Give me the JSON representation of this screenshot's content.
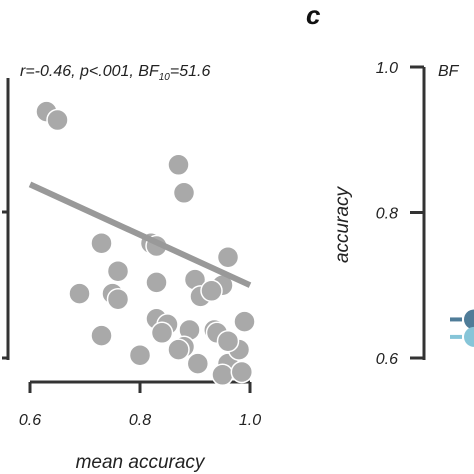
{
  "panel_letter": "c",
  "chart_data": [
    {
      "type": "scatter",
      "title": "",
      "stats": {
        "prefix": "r=-0.46, p<.001, BF",
        "sub": "10",
        "suffix": "=51.6"
      },
      "xlabel": "mean accuracy",
      "ylabel": "",
      "xlim": [
        0.6,
        1.0
      ],
      "xticks": [
        "0.6",
        "0.8",
        "1.0"
      ],
      "point_color": "#a9a9a9",
      "line_color": "#999999",
      "regression": {
        "x": [
          0.6,
          1.0
        ],
        "y": [
          0.62,
          0.26
        ]
      },
      "points": [
        {
          "x": 0.63,
          "y": 0.88
        },
        {
          "x": 0.65,
          "y": 0.85
        },
        {
          "x": 0.87,
          "y": 0.69
        },
        {
          "x": 0.88,
          "y": 0.59
        },
        {
          "x": 0.73,
          "y": 0.41
        },
        {
          "x": 0.82,
          "y": 0.41
        },
        {
          "x": 0.83,
          "y": 0.4
        },
        {
          "x": 0.96,
          "y": 0.36
        },
        {
          "x": 0.76,
          "y": 0.31
        },
        {
          "x": 0.83,
          "y": 0.27
        },
        {
          "x": 0.9,
          "y": 0.28
        },
        {
          "x": 0.95,
          "y": 0.26
        },
        {
          "x": 0.69,
          "y": 0.23
        },
        {
          "x": 0.75,
          "y": 0.23
        },
        {
          "x": 0.76,
          "y": 0.21
        },
        {
          "x": 0.91,
          "y": 0.22
        },
        {
          "x": 0.93,
          "y": 0.24
        },
        {
          "x": 0.83,
          "y": 0.14
        },
        {
          "x": 0.85,
          "y": 0.12
        },
        {
          "x": 0.89,
          "y": 0.1
        },
        {
          "x": 0.935,
          "y": 0.1
        },
        {
          "x": 0.99,
          "y": 0.13
        },
        {
          "x": 0.73,
          "y": 0.08
        },
        {
          "x": 0.84,
          "y": 0.09
        },
        {
          "x": 0.94,
          "y": 0.09
        },
        {
          "x": 0.88,
          "y": 0.04
        },
        {
          "x": 0.8,
          "y": 0.01
        },
        {
          "x": 0.87,
          "y": 0.03
        },
        {
          "x": 0.905,
          "y": -0.02
        },
        {
          "x": 0.96,
          "y": -0.02
        },
        {
          "x": 0.95,
          "y": -0.06
        },
        {
          "x": 0.985,
          "y": -0.05
        },
        {
          "x": 0.98,
          "y": 0.03
        },
        {
          "x": 0.96,
          "y": 0.06
        }
      ]
    },
    {
      "type": "line",
      "title": "",
      "stats_partial": "BF",
      "ylabel": "accuracy",
      "ylim": [
        0.6,
        1.0
      ],
      "yticks": [
        "1.0",
        "0.8",
        "0.6"
      ],
      "series": [
        {
          "color": "#4f7c98",
          "x": [
            0
          ],
          "y": [
            0.653
          ]
        },
        {
          "color": "#86c5d8",
          "x": [
            0
          ],
          "y": [
            0.629
          ]
        }
      ]
    }
  ]
}
